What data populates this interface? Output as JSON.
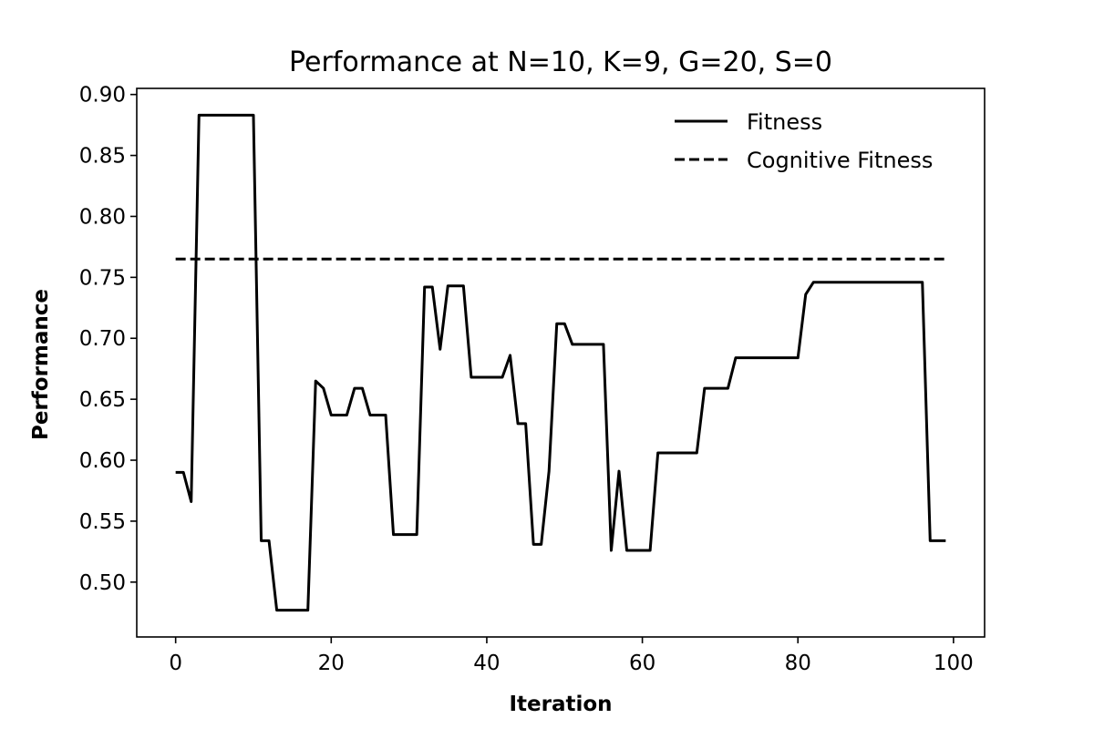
{
  "chart_data": {
    "type": "line",
    "title": "Performance at N=10, K=9, G=20, S=0",
    "xlabel": "Iteration",
    "ylabel": "Performance",
    "xlim": [
      -5,
      104
    ],
    "ylim": [
      0.455,
      0.905
    ],
    "xticks": [
      0,
      20,
      40,
      60,
      80,
      100
    ],
    "yticks": [
      0.5,
      0.55,
      0.6,
      0.65,
      0.7,
      0.75,
      0.8,
      0.85,
      0.9
    ],
    "ytick_labels": [
      "0.50",
      "0.55",
      "0.60",
      "0.65",
      "0.70",
      "0.75",
      "0.80",
      "0.85",
      "0.90"
    ],
    "xtick_labels": [
      "0",
      "20",
      "40",
      "60",
      "80",
      "100"
    ],
    "grid": false,
    "legend_position": "top-right",
    "series": [
      {
        "name": "Fitness",
        "style": "solid",
        "color": "#000000",
        "x": [
          0,
          1,
          2,
          3,
          4,
          5,
          6,
          7,
          8,
          9,
          10,
          11,
          12,
          13,
          14,
          15,
          16,
          17,
          18,
          19,
          20,
          21,
          22,
          23,
          24,
          25,
          26,
          27,
          28,
          29,
          30,
          31,
          32,
          33,
          34,
          35,
          36,
          37,
          38,
          39,
          40,
          41,
          42,
          43,
          44,
          45,
          46,
          47,
          48,
          49,
          50,
          51,
          52,
          53,
          54,
          55,
          56,
          57,
          58,
          59,
          60,
          61,
          62,
          63,
          64,
          65,
          66,
          67,
          68,
          69,
          70,
          71,
          72,
          73,
          74,
          75,
          76,
          77,
          78,
          79,
          80,
          81,
          82,
          83,
          84,
          85,
          86,
          87,
          88,
          89,
          90,
          91,
          92,
          93,
          94,
          95,
          96,
          97,
          98,
          99
        ],
        "y": [
          0.59,
          0.59,
          0.566,
          0.883,
          0.883,
          0.883,
          0.883,
          0.883,
          0.883,
          0.883,
          0.883,
          0.534,
          0.534,
          0.477,
          0.477,
          0.477,
          0.477,
          0.477,
          0.665,
          0.659,
          0.637,
          0.637,
          0.637,
          0.659,
          0.659,
          0.637,
          0.637,
          0.637,
          0.539,
          0.539,
          0.539,
          0.539,
          0.742,
          0.742,
          0.691,
          0.743,
          0.743,
          0.743,
          0.668,
          0.668,
          0.668,
          0.668,
          0.668,
          0.686,
          0.63,
          0.63,
          0.531,
          0.531,
          0.591,
          0.712,
          0.712,
          0.695,
          0.695,
          0.695,
          0.695,
          0.695,
          0.526,
          0.591,
          0.526,
          0.526,
          0.526,
          0.526,
          0.606,
          0.606,
          0.606,
          0.606,
          0.606,
          0.606,
          0.659,
          0.659,
          0.659,
          0.659,
          0.684,
          0.684,
          0.684,
          0.684,
          0.684,
          0.684,
          0.684,
          0.684,
          0.684,
          0.736,
          0.746,
          0.746,
          0.746,
          0.746,
          0.746,
          0.746,
          0.746,
          0.746,
          0.746,
          0.746,
          0.746,
          0.746,
          0.746,
          0.746,
          0.746,
          0.534,
          0.534,
          0.534
        ]
      },
      {
        "name": "Cognitive Fitness",
        "style": "dashed",
        "color": "#000000",
        "x": [
          0,
          99
        ],
        "y": [
          0.765,
          0.765
        ]
      }
    ]
  }
}
